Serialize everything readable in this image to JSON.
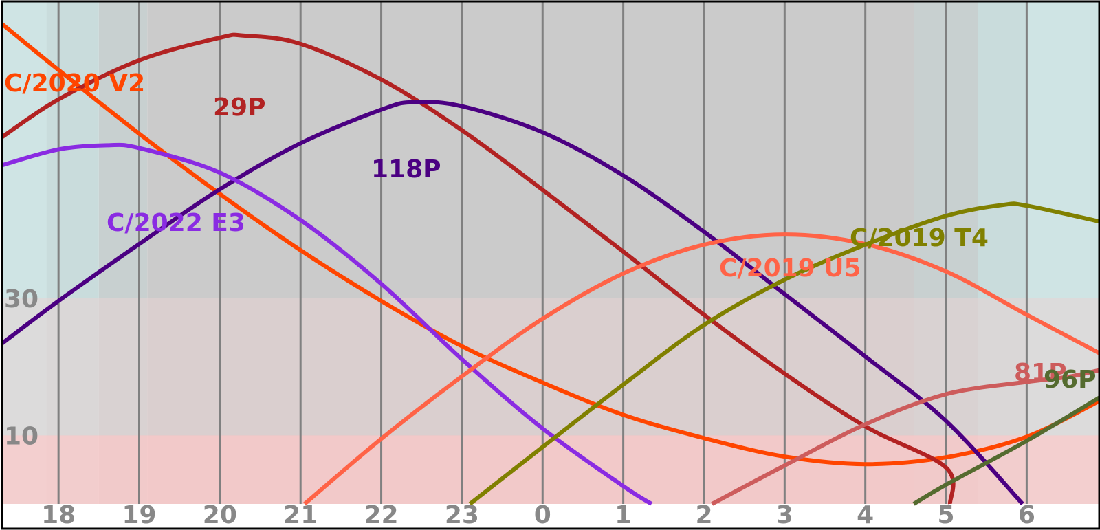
{
  "chart_data": {
    "type": "line",
    "title": "",
    "xlabel": "",
    "ylabel": "",
    "x_unit": "hours",
    "x_ticks": [
      "18",
      "19",
      "20",
      "21",
      "22",
      "23",
      "0",
      "1",
      "2",
      "3",
      "4",
      "5",
      "6"
    ],
    "y_ticks": [
      "10",
      "30"
    ],
    "ylim": [
      0,
      73.3
    ],
    "xlim": [
      17.3,
      30.9
    ],
    "grid": "vertical lines at each hour",
    "bands": {
      "sky": [
        {
          "from": 17.3,
          "to": 17.85,
          "color": "#cfe4e4"
        },
        {
          "from": 17.85,
          "to": 18.5,
          "color": "#c9dcdc"
        },
        {
          "from": 18.5,
          "to": 19.1,
          "color": "#c8d0d0"
        },
        {
          "from": 19.1,
          "to": 28.6,
          "color": "#cbcbcb"
        },
        {
          "from": 28.6,
          "to": 29.4,
          "color": "#c8d0d0"
        },
        {
          "from": 29.4,
          "to": 30.0,
          "color": "#c9dcdc"
        },
        {
          "from": 30.0,
          "to": 30.9,
          "color": "#cfe4e4"
        }
      ],
      "altitude": [
        {
          "from": 0,
          "to": 10,
          "color": "#ffc8c8"
        },
        {
          "from": 10,
          "to": 30,
          "color": "#e7d3d3"
        },
        {
          "from": 30,
          "to": 73.3,
          "color": "none"
        }
      ]
    },
    "series": [
      {
        "name": "C/2020 V2",
        "color": "#ff4500",
        "x": [
          17.3,
          18.0,
          19.0,
          20.0,
          21.0,
          22.0,
          23.0,
          24.0,
          25.0,
          26.0,
          27.0,
          28.0,
          29.0,
          30.0,
          30.9
        ],
        "y": [
          70,
          63.3,
          54.0,
          45.2,
          37.0,
          29.6,
          23.0,
          17.7,
          13.0,
          9.6,
          6.9,
          5.8,
          6.8,
          9.8,
          15.0
        ]
      },
      {
        "name": "29P",
        "color": "#b22222",
        "x": [
          17.3,
          18.0,
          19.0,
          20.0,
          20.3,
          21.0,
          22.0,
          23.0,
          24.0,
          25.0,
          26.0,
          27.0,
          28.0,
          29.0,
          29.05
        ],
        "y": [
          53.5,
          59.0,
          64.7,
          68.0,
          68.3,
          67.1,
          61.9,
          54.5,
          45.8,
          36.8,
          27.6,
          19.0,
          11.3,
          5.3,
          0
        ]
      },
      {
        "name": "118P",
        "color": "#4b0082",
        "x": [
          17.3,
          18.0,
          19.0,
          20.0,
          21.0,
          22.0,
          22.4,
          23.0,
          24.0,
          25.0,
          26.0,
          27.0,
          28.0,
          29.0,
          29.95
        ],
        "y": [
          23.4,
          29.6,
          37.9,
          45.9,
          52.6,
          57.5,
          58.6,
          58.0,
          54.2,
          47.9,
          39.7,
          30.6,
          21.5,
          12.1,
          0
        ]
      },
      {
        "name": "C/2022 E3",
        "color": "#8a2be2",
        "x": [
          17.3,
          18.0,
          18.6,
          19.0,
          20.0,
          21.0,
          22.0,
          23.0,
          24.0,
          25.0,
          25.35
        ],
        "y": [
          49.4,
          51.7,
          52.3,
          51.9,
          48.3,
          41.4,
          32.1,
          21.1,
          11.0,
          2.6,
          0
        ]
      },
      {
        "name": "C/2019 U5",
        "color": "#ff6347",
        "x": [
          21.05,
          22.0,
          23.0,
          24.0,
          25.0,
          26.0,
          27.0,
          28.0,
          29.0,
          30.0,
          30.9
        ],
        "y": [
          0,
          9.5,
          18.6,
          27.0,
          33.6,
          37.8,
          39.3,
          37.9,
          33.9,
          27.6,
          22.0
        ]
      },
      {
        "name": "C/2019 T4",
        "color": "#808000",
        "x": [
          23.1,
          24.0,
          25.0,
          26.0,
          27.0,
          28.0,
          29.0,
          29.7,
          30.0,
          30.9
        ],
        "y": [
          0,
          8.3,
          17.4,
          26.1,
          32.7,
          37.8,
          42.0,
          43.6,
          43.5,
          41.2
        ]
      },
      {
        "name": "81P",
        "color": "#cd5c5c",
        "x": [
          26.1,
          27.0,
          28.0,
          29.0,
          30.0,
          30.5,
          30.9
        ],
        "y": [
          0,
          5.6,
          11.6,
          16.0,
          17.8,
          18.5,
          19.5
        ]
      },
      {
        "name": "96P",
        "color": "#556b2f",
        "x": [
          28.6,
          29.0,
          30.0,
          30.9
        ],
        "y": [
          0,
          2.8,
          9.2,
          15.5
        ]
      }
    ],
    "labels": [
      {
        "text": "C/2020 V2",
        "series": "C/2020 V2"
      },
      {
        "text": "29P",
        "series": "29P"
      },
      {
        "text": "118P",
        "series": "118P"
      },
      {
        "text": "C/2022 E3",
        "series": "C/2022 E3"
      },
      {
        "text": "C/2019 U5",
        "series": "C/2019 U5"
      },
      {
        "text": "C/2019 T4",
        "series": "C/2019 T4"
      },
      {
        "text": "81P",
        "series": "81P"
      },
      {
        "text": "96P",
        "series": "96P"
      }
    ]
  }
}
